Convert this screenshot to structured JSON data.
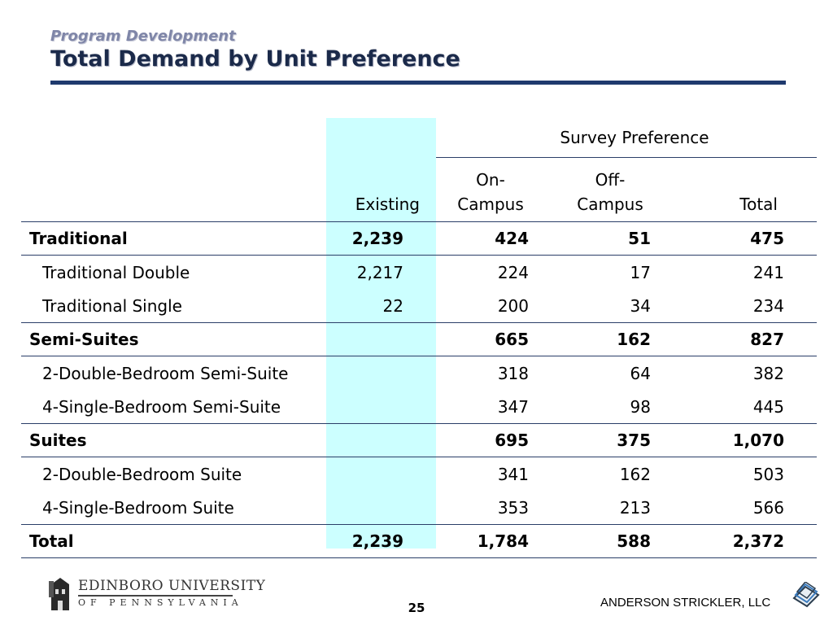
{
  "header": {
    "subtitle": "Program Development",
    "title": "Total Demand by Unit Preference"
  },
  "table": {
    "group_header": "Survey Preference",
    "columns": {
      "existing": "Existing",
      "on_campus_1": "On-",
      "on_campus_2": "Campus",
      "off_campus_1": "Off-",
      "off_campus_2": "Campus",
      "total": "Total"
    },
    "rows": [
      {
        "label": "Traditional",
        "existing": "2,239",
        "on": "424",
        "off": "51",
        "total": "475"
      },
      {
        "label": "Traditional Double",
        "existing": "2,217",
        "on": "224",
        "off": "17",
        "total": "241"
      },
      {
        "label": "Traditional Single",
        "existing": "22",
        "on": "200",
        "off": "34",
        "total": "234"
      },
      {
        "label": "Semi-Suites",
        "existing": "",
        "on": "665",
        "off": "162",
        "total": "827"
      },
      {
        "label": "2-Double-Bedroom Semi-Suite",
        "existing": "",
        "on": "318",
        "off": "64",
        "total": "382"
      },
      {
        "label": "4-Single-Bedroom Semi-Suite",
        "existing": "",
        "on": "347",
        "off": "98",
        "total": "445"
      },
      {
        "label": "Suites",
        "existing": "",
        "on": "695",
        "off": "375",
        "total": "1,070"
      },
      {
        "label": "2-Double-Bedroom Suite",
        "existing": "",
        "on": "341",
        "off": "162",
        "total": "503"
      },
      {
        "label": "4-Single-Bedroom Suite",
        "existing": "",
        "on": "353",
        "off": "213",
        "total": "566"
      },
      {
        "label": "Total",
        "existing": "2,239",
        "on": "1,784",
        "off": "588",
        "total": "2,372"
      }
    ]
  },
  "footer": {
    "university_name": "EDINBORO UNIVERSITY",
    "university_state": "OF PENNSYLVANIA",
    "page_number": "25",
    "firm": "ANDERSON STRICKLER, LLC"
  },
  "colors": {
    "existing_highlight": "#ccffff",
    "rule": "#1f3a6e",
    "title": "#1b2a4a",
    "subtitle": "#7f86a8"
  }
}
